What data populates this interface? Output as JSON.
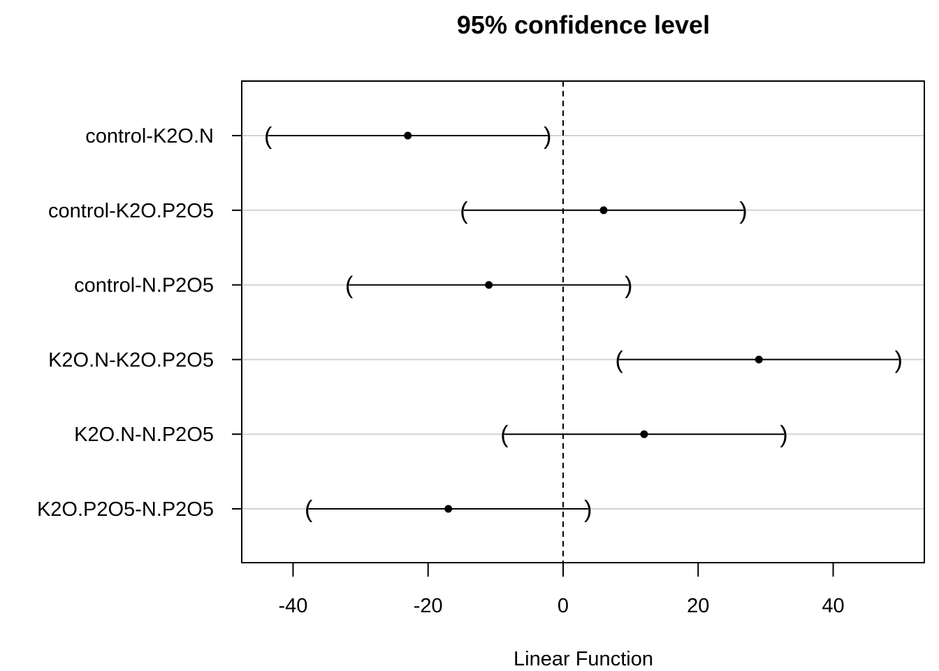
{
  "chart_data": {
    "type": "interval",
    "title": "95% confidence level",
    "xlabel": "Linear Function",
    "ylabel": "",
    "xlim": [
      -47.6,
      53.5
    ],
    "xticks": [
      -40,
      -20,
      0,
      20,
      40
    ],
    "xtick_labels": [
      "-40",
      "-20",
      "0",
      "20",
      "40"
    ],
    "reference_line": 0,
    "grid": "horizontal",
    "categories": [
      "control-K2O.N",
      "control-K2O.P2O5",
      "control-N.P2O5",
      "K2O.N-K2O.P2O5",
      "K2O.N-N.P2O5",
      "K2O.P2O5-N.P2O5"
    ],
    "estimates": [
      -23.0,
      6.0,
      -11.0,
      29.0,
      12.0,
      -17.0
    ],
    "lower": [
      -43.7,
      -14.7,
      -31.7,
      8.3,
      -8.7,
      -37.7
    ],
    "upper": [
      -2.3,
      26.7,
      9.7,
      49.7,
      32.7,
      3.7
    ],
    "colors": {
      "points": "#000000",
      "grid": "#d3d3d3"
    }
  }
}
